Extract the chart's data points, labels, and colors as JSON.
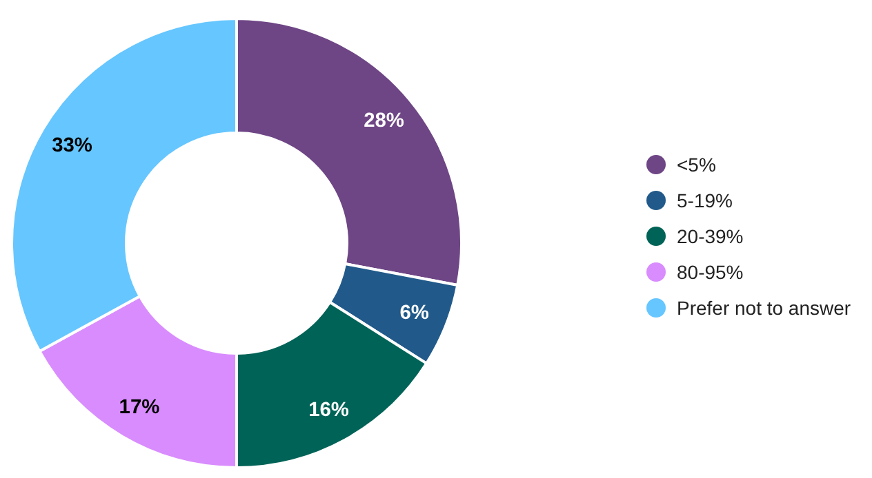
{
  "chart_data": {
    "type": "donut",
    "categories": [
      "<5%",
      "5-19%",
      "20-39%",
      "80-95%",
      "Prefer not to answer"
    ],
    "values": [
      28,
      6,
      16,
      17,
      33
    ],
    "colors": [
      "#6e4585",
      "#215a8a",
      "#006357",
      "#d98cfe",
      "#66c6ff"
    ],
    "value_labels": [
      "28%",
      "6%",
      "16%",
      "17%",
      "33%"
    ],
    "legend": "right"
  }
}
